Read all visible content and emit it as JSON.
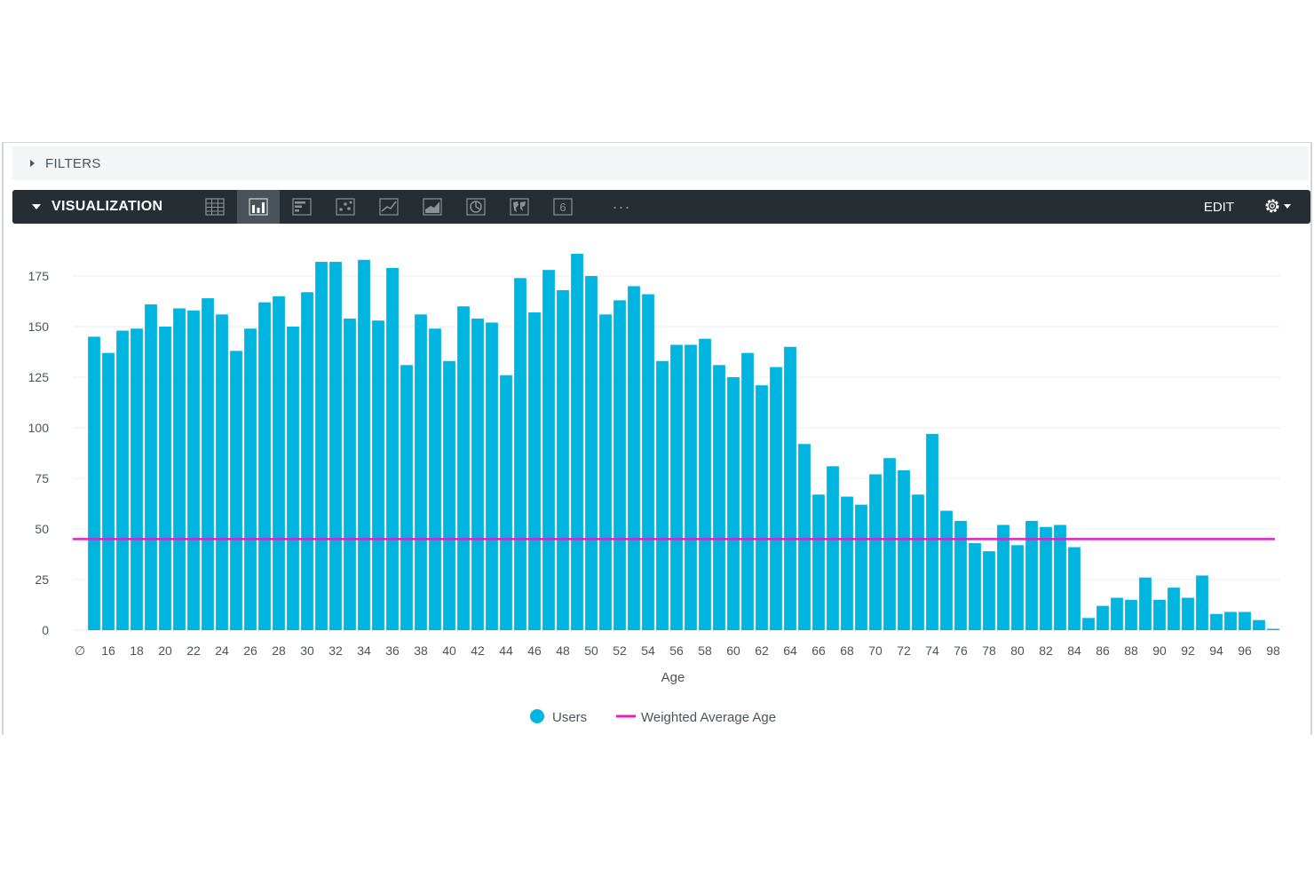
{
  "filters": {
    "label": "FILTERS"
  },
  "visualization": {
    "label": "VISUALIZATION",
    "tools": [
      {
        "name": "table-icon",
        "active": false
      },
      {
        "name": "column-chart-icon",
        "active": true
      },
      {
        "name": "bar-chart-icon",
        "active": false
      },
      {
        "name": "scatter-chart-icon",
        "active": false
      },
      {
        "name": "line-chart-icon",
        "active": false
      },
      {
        "name": "area-chart-icon",
        "active": false
      },
      {
        "name": "pie-chart-icon",
        "active": false
      },
      {
        "name": "map-icon",
        "active": false
      },
      {
        "name": "single-value-icon",
        "active": false,
        "text": "6"
      },
      {
        "name": "more-icon",
        "active": false,
        "text": "···"
      }
    ],
    "edit_label": "EDIT",
    "settings_icon": "gear-icon"
  },
  "colors": {
    "bar": "#00b6e1",
    "average_line": "#e020c8",
    "toolbar": "#262d33",
    "grid": "#eceef0"
  },
  "chart_data": {
    "type": "bar",
    "xlabel": "Age",
    "ylabel": "",
    "ylim": [
      0,
      190
    ],
    "yticks": [
      0,
      25,
      50,
      75,
      100,
      125,
      150,
      175
    ],
    "grid": true,
    "legend": "bottom-center",
    "categories": [
      "∅",
      "15",
      "16",
      "17",
      "18",
      "19",
      "20",
      "21",
      "22",
      "23",
      "24",
      "25",
      "26",
      "27",
      "28",
      "29",
      "30",
      "31",
      "32",
      "33",
      "34",
      "35",
      "36",
      "37",
      "38",
      "39",
      "40",
      "41",
      "42",
      "43",
      "44",
      "45",
      "46",
      "47",
      "48",
      "49",
      "50",
      "51",
      "52",
      "53",
      "54",
      "55",
      "56",
      "57",
      "58",
      "59",
      "60",
      "61",
      "62",
      "63",
      "64",
      "65",
      "66",
      "67",
      "68",
      "69",
      "70",
      "71",
      "72",
      "73",
      "74",
      "75",
      "76",
      "77",
      "78",
      "79",
      "80",
      "81",
      "82",
      "83",
      "84",
      "85",
      "86",
      "87",
      "88",
      "89",
      "90",
      "91",
      "92",
      "93",
      "94",
      "95",
      "96",
      "97",
      "98"
    ],
    "tick_labels": [
      "∅",
      "16",
      "18",
      "20",
      "22",
      "24",
      "26",
      "28",
      "30",
      "32",
      "34",
      "36",
      "38",
      "40",
      "42",
      "44",
      "46",
      "48",
      "50",
      "52",
      "54",
      "56",
      "58",
      "60",
      "62",
      "64",
      "66",
      "68",
      "70",
      "72",
      "74",
      "76",
      "78",
      "80",
      "82",
      "84",
      "86",
      "88",
      "90",
      "92",
      "94",
      "96",
      "98"
    ],
    "series": [
      {
        "name": "Users",
        "values": [
          0,
          145,
          137,
          148,
          149,
          161,
          150,
          159,
          158,
          164,
          156,
          138,
          149,
          162,
          165,
          150,
          167,
          182,
          182,
          154,
          183,
          153,
          179,
          131,
          156,
          149,
          133,
          160,
          154,
          152,
          126,
          174,
          157,
          178,
          168,
          186,
          175,
          156,
          163,
          170,
          166,
          133,
          141,
          141,
          144,
          131,
          125,
          137,
          121,
          130,
          140,
          92,
          67,
          81,
          66,
          62,
          77,
          85,
          79,
          67,
          97,
          59,
          54,
          43,
          39,
          52,
          42,
          54,
          51,
          52,
          41,
          6,
          12,
          16,
          15,
          26,
          15,
          21,
          16,
          27,
          8,
          9,
          9,
          5,
          0
        ]
      },
      {
        "name": "Weighted Average Age",
        "type": "line",
        "value": 45
      }
    ]
  }
}
